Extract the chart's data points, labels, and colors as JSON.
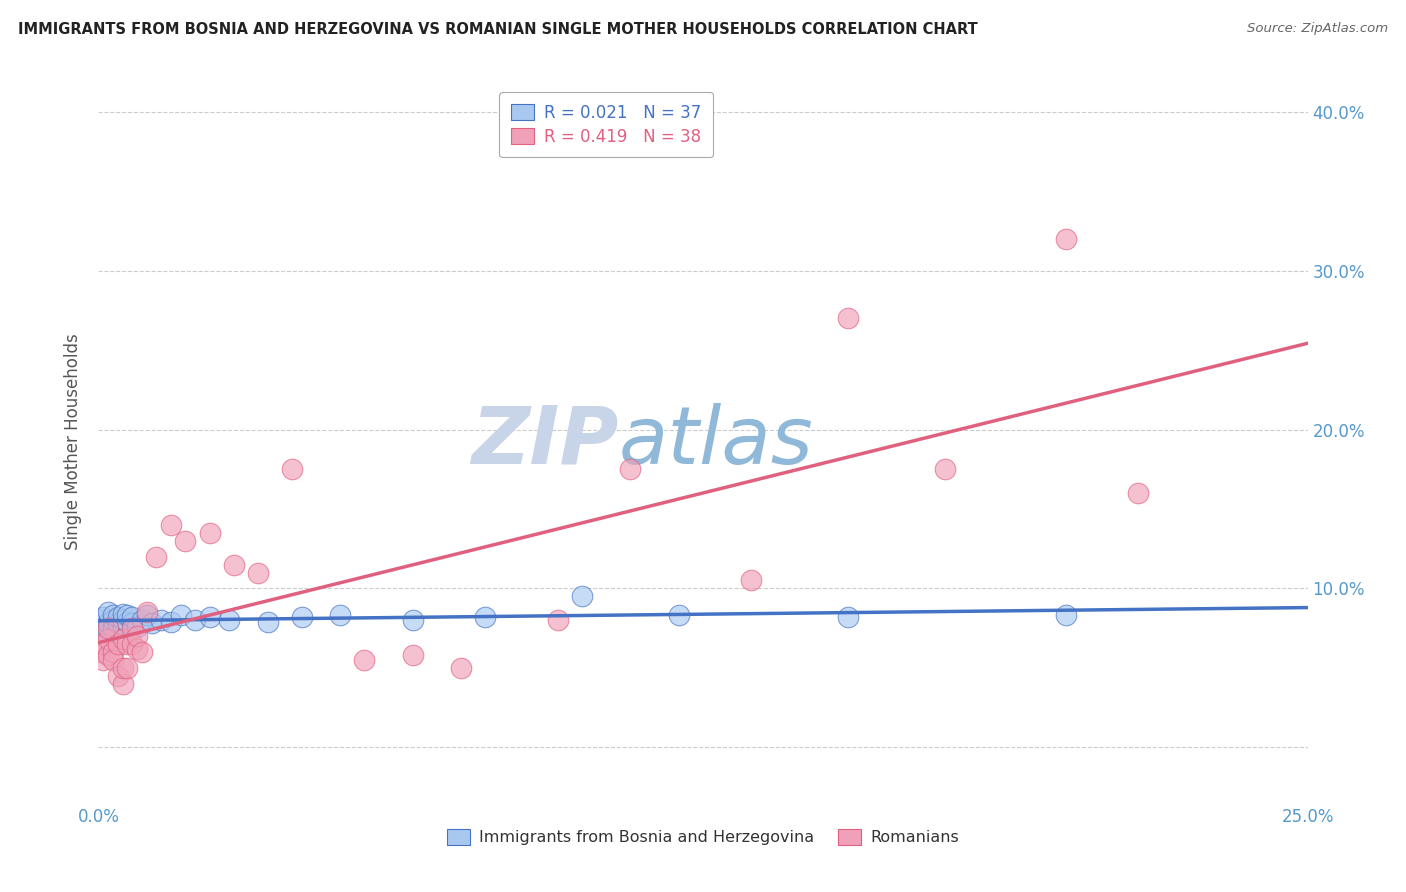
{
  "title": "IMMIGRANTS FROM BOSNIA AND HERZEGOVINA VS ROMANIAN SINGLE MOTHER HOUSEHOLDS CORRELATION CHART",
  "source": "Source: ZipAtlas.com",
  "ylabel": "Single Mother Households",
  "xlim": [
    0.0,
    0.25
  ],
  "ylim": [
    -0.035,
    0.42
  ],
  "yticks": [
    0.0,
    0.1,
    0.2,
    0.3,
    0.4
  ],
  "ytick_labels": [
    "",
    "10.0%",
    "20.0%",
    "30.0%",
    "40.0%"
  ],
  "xticks": [
    0.0,
    0.05,
    0.1,
    0.15,
    0.2,
    0.25
  ],
  "xtick_labels": [
    "0.0%",
    "",
    "",
    "",
    "",
    "25.0%"
  ],
  "legend_r1": "R = 0.021",
  "legend_n1": "N = 37",
  "legend_r2": "R = 0.419",
  "legend_n2": "N = 38",
  "color_blue": "#A8C8F0",
  "color_pink": "#F0A0B8",
  "color_blue_line": "#4472C4",
  "color_pink_line": "#E06080",
  "watermark_zip": "ZIP",
  "watermark_atlas": "atlas",
  "watermark_color_zip": "#C8D4E8",
  "watermark_color_atlas": "#90B8D8",
  "bosnia_x": [
    0.0,
    0.001,
    0.001,
    0.002,
    0.002,
    0.002,
    0.003,
    0.003,
    0.003,
    0.004,
    0.004,
    0.005,
    0.005,
    0.005,
    0.006,
    0.006,
    0.007,
    0.007,
    0.008,
    0.009,
    0.01,
    0.011,
    0.013,
    0.015,
    0.017,
    0.02,
    0.023,
    0.027,
    0.035,
    0.042,
    0.05,
    0.065,
    0.08,
    0.1,
    0.12,
    0.155,
    0.2
  ],
  "bosnia_y": [
    0.075,
    0.08,
    0.082,
    0.072,
    0.078,
    0.085,
    0.075,
    0.08,
    0.083,
    0.078,
    0.082,
    0.076,
    0.08,
    0.084,
    0.079,
    0.083,
    0.078,
    0.082,
    0.076,
    0.08,
    0.083,
    0.078,
    0.08,
    0.079,
    0.083,
    0.08,
    0.082,
    0.08,
    0.079,
    0.082,
    0.083,
    0.08,
    0.082,
    0.095,
    0.083,
    0.082,
    0.083
  ],
  "romanian_x": [
    0.0,
    0.001,
    0.001,
    0.002,
    0.002,
    0.002,
    0.003,
    0.003,
    0.004,
    0.004,
    0.005,
    0.005,
    0.005,
    0.006,
    0.006,
    0.007,
    0.007,
    0.008,
    0.008,
    0.009,
    0.01,
    0.012,
    0.015,
    0.018,
    0.023,
    0.028,
    0.033,
    0.04,
    0.055,
    0.065,
    0.075,
    0.095,
    0.11,
    0.135,
    0.155,
    0.175,
    0.2,
    0.215
  ],
  "romanian_y": [
    0.06,
    0.055,
    0.065,
    0.058,
    0.068,
    0.075,
    0.06,
    0.055,
    0.065,
    0.045,
    0.04,
    0.05,
    0.068,
    0.065,
    0.05,
    0.075,
    0.065,
    0.062,
    0.07,
    0.06,
    0.085,
    0.12,
    0.14,
    0.13,
    0.135,
    0.115,
    0.11,
    0.175,
    0.055,
    0.058,
    0.05,
    0.08,
    0.175,
    0.105,
    0.27,
    0.175,
    0.32,
    0.16
  ]
}
